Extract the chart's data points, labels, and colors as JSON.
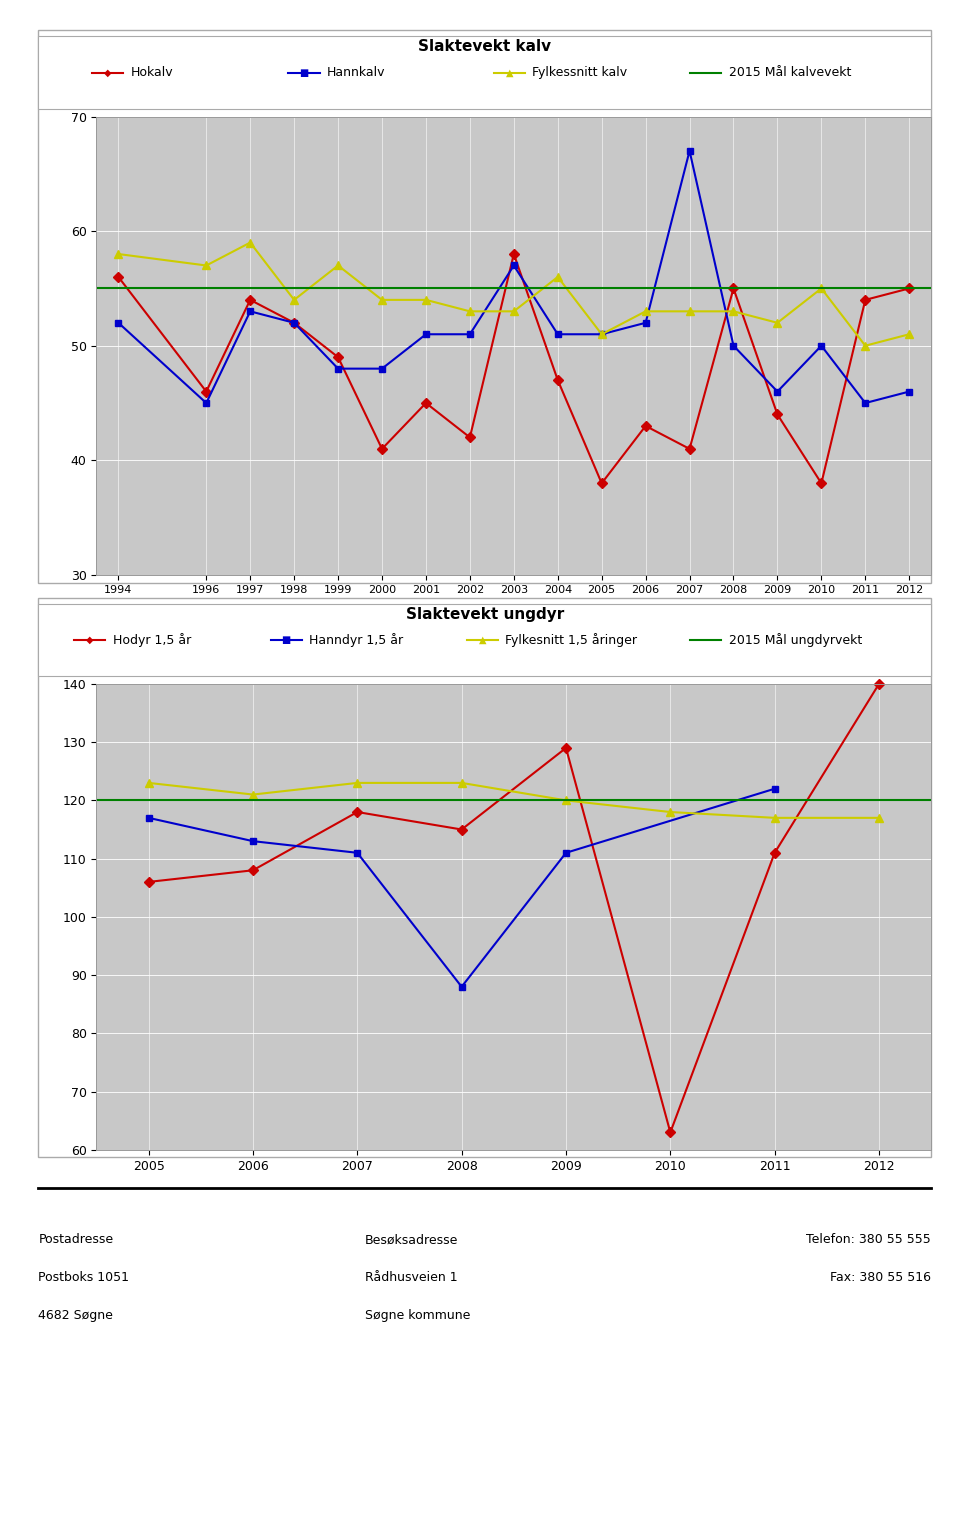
{
  "chart1": {
    "title": "Slaktevekt kalv",
    "years": [
      1994,
      1996,
      1997,
      1998,
      1999,
      2000,
      2001,
      2002,
      2003,
      2004,
      2005,
      2006,
      2007,
      2008,
      2009,
      2010,
      2011,
      2012
    ],
    "hokalv": [
      56,
      46,
      54,
      52,
      49,
      41,
      45,
      42,
      58,
      47,
      38,
      43,
      41,
      55,
      44,
      38,
      54,
      55
    ],
    "hannkalv": [
      52,
      45,
      53,
      52,
      48,
      48,
      51,
      51,
      57,
      51,
      51,
      52,
      67,
      50,
      46,
      50,
      45,
      46
    ],
    "fylkesnitt": [
      58,
      57,
      59,
      54,
      57,
      54,
      54,
      53,
      53,
      56,
      51,
      53,
      53,
      53,
      52,
      55,
      50,
      51
    ],
    "maal": 55,
    "legend": [
      "Hokalv",
      "Hannkalv",
      "Fylkessnitt kalv",
      "2015 Mål kalvevekt"
    ],
    "ylim": [
      30,
      70
    ],
    "yticks": [
      30,
      40,
      50,
      60,
      70
    ],
    "colors": {
      "hokalv": "#CC0000",
      "hannkalv": "#0000CC",
      "fylkesnitt": "#CCCC00",
      "maal": "#008000"
    }
  },
  "chart2": {
    "title": "Slaktevekt ungdyr",
    "years": [
      2005,
      2006,
      2007,
      2008,
      2009,
      2010,
      2011,
      2012
    ],
    "hodyr": [
      106,
      108,
      118,
      115,
      129,
      63,
      111,
      140
    ],
    "hanndyr": [
      117,
      113,
      111,
      88,
      111,
      null,
      122,
      null
    ],
    "fylkesnitt": [
      123,
      121,
      123,
      123,
      120,
      118,
      117,
      117
    ],
    "maal": 120,
    "legend": [
      "Hodyr 1,5 år",
      "Hanndyr 1,5 år",
      "Fylkesnitt 1,5 åringer",
      "2015 Mål ungdyrvekt"
    ],
    "ylim": [
      60,
      140
    ],
    "yticks": [
      60,
      70,
      80,
      90,
      100,
      110,
      120,
      130,
      140
    ],
    "colors": {
      "hodyr": "#CC0000",
      "hanndyr": "#0000CC",
      "fylkesnitt": "#CCCC00",
      "maal": "#008000"
    }
  },
  "footer": {
    "left": [
      "Postadresse",
      "Postboks 1051",
      "4682 Søgne"
    ],
    "center": [
      "Besøksadresse",
      "Rådhusveien 1",
      "Søgne kommune"
    ],
    "right": [
      "Telefon: 380 55 555",
      "Fax: 380 55 516"
    ]
  },
  "fig_bg": "#FFFFFF",
  "plot_bg": "#C8C8C8",
  "panel_bg": "#FFFFFF"
}
